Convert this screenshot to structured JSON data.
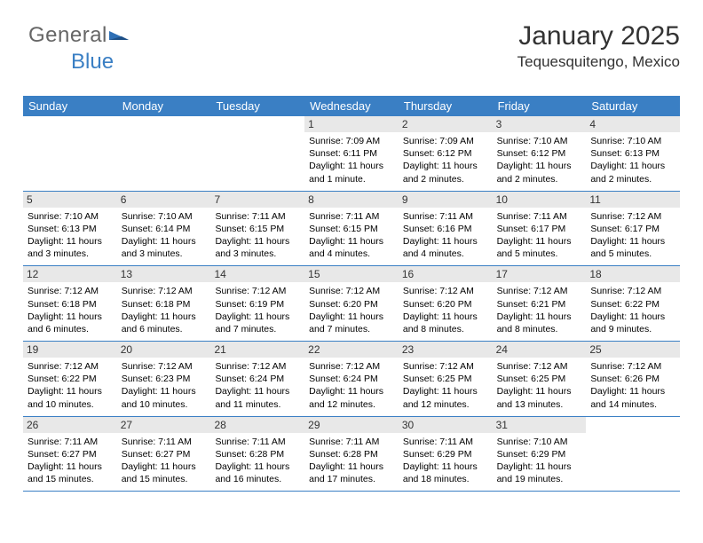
{
  "logo": {
    "text1": "General",
    "text2": "Blue",
    "tri_color": "#2e6fb5"
  },
  "header": {
    "title": "January 2025",
    "location": "Tequesquitengo, Mexico"
  },
  "colors": {
    "header_bg": "#3a7fc4",
    "header_text": "#ffffff",
    "daynum_bg": "#e8e8e8",
    "week_border": "#3a7fc4",
    "page_bg": "#ffffff"
  },
  "day_headers": [
    "Sunday",
    "Monday",
    "Tuesday",
    "Wednesday",
    "Thursday",
    "Friday",
    "Saturday"
  ],
  "weeks": [
    [
      {
        "n": "",
        "sunrise": "",
        "sunset": "",
        "daylight": ""
      },
      {
        "n": "",
        "sunrise": "",
        "sunset": "",
        "daylight": ""
      },
      {
        "n": "",
        "sunrise": "",
        "sunset": "",
        "daylight": ""
      },
      {
        "n": "1",
        "sunrise": "Sunrise: 7:09 AM",
        "sunset": "Sunset: 6:11 PM",
        "daylight": "Daylight: 11 hours and 1 minute."
      },
      {
        "n": "2",
        "sunrise": "Sunrise: 7:09 AM",
        "sunset": "Sunset: 6:12 PM",
        "daylight": "Daylight: 11 hours and 2 minutes."
      },
      {
        "n": "3",
        "sunrise": "Sunrise: 7:10 AM",
        "sunset": "Sunset: 6:12 PM",
        "daylight": "Daylight: 11 hours and 2 minutes."
      },
      {
        "n": "4",
        "sunrise": "Sunrise: 7:10 AM",
        "sunset": "Sunset: 6:13 PM",
        "daylight": "Daylight: 11 hours and 2 minutes."
      }
    ],
    [
      {
        "n": "5",
        "sunrise": "Sunrise: 7:10 AM",
        "sunset": "Sunset: 6:13 PM",
        "daylight": "Daylight: 11 hours and 3 minutes."
      },
      {
        "n": "6",
        "sunrise": "Sunrise: 7:10 AM",
        "sunset": "Sunset: 6:14 PM",
        "daylight": "Daylight: 11 hours and 3 minutes."
      },
      {
        "n": "7",
        "sunrise": "Sunrise: 7:11 AM",
        "sunset": "Sunset: 6:15 PM",
        "daylight": "Daylight: 11 hours and 3 minutes."
      },
      {
        "n": "8",
        "sunrise": "Sunrise: 7:11 AM",
        "sunset": "Sunset: 6:15 PM",
        "daylight": "Daylight: 11 hours and 4 minutes."
      },
      {
        "n": "9",
        "sunrise": "Sunrise: 7:11 AM",
        "sunset": "Sunset: 6:16 PM",
        "daylight": "Daylight: 11 hours and 4 minutes."
      },
      {
        "n": "10",
        "sunrise": "Sunrise: 7:11 AM",
        "sunset": "Sunset: 6:17 PM",
        "daylight": "Daylight: 11 hours and 5 minutes."
      },
      {
        "n": "11",
        "sunrise": "Sunrise: 7:12 AM",
        "sunset": "Sunset: 6:17 PM",
        "daylight": "Daylight: 11 hours and 5 minutes."
      }
    ],
    [
      {
        "n": "12",
        "sunrise": "Sunrise: 7:12 AM",
        "sunset": "Sunset: 6:18 PM",
        "daylight": "Daylight: 11 hours and 6 minutes."
      },
      {
        "n": "13",
        "sunrise": "Sunrise: 7:12 AM",
        "sunset": "Sunset: 6:18 PM",
        "daylight": "Daylight: 11 hours and 6 minutes."
      },
      {
        "n": "14",
        "sunrise": "Sunrise: 7:12 AM",
        "sunset": "Sunset: 6:19 PM",
        "daylight": "Daylight: 11 hours and 7 minutes."
      },
      {
        "n": "15",
        "sunrise": "Sunrise: 7:12 AM",
        "sunset": "Sunset: 6:20 PM",
        "daylight": "Daylight: 11 hours and 7 minutes."
      },
      {
        "n": "16",
        "sunrise": "Sunrise: 7:12 AM",
        "sunset": "Sunset: 6:20 PM",
        "daylight": "Daylight: 11 hours and 8 minutes."
      },
      {
        "n": "17",
        "sunrise": "Sunrise: 7:12 AM",
        "sunset": "Sunset: 6:21 PM",
        "daylight": "Daylight: 11 hours and 8 minutes."
      },
      {
        "n": "18",
        "sunrise": "Sunrise: 7:12 AM",
        "sunset": "Sunset: 6:22 PM",
        "daylight": "Daylight: 11 hours and 9 minutes."
      }
    ],
    [
      {
        "n": "19",
        "sunrise": "Sunrise: 7:12 AM",
        "sunset": "Sunset: 6:22 PM",
        "daylight": "Daylight: 11 hours and 10 minutes."
      },
      {
        "n": "20",
        "sunrise": "Sunrise: 7:12 AM",
        "sunset": "Sunset: 6:23 PM",
        "daylight": "Daylight: 11 hours and 10 minutes."
      },
      {
        "n": "21",
        "sunrise": "Sunrise: 7:12 AM",
        "sunset": "Sunset: 6:24 PM",
        "daylight": "Daylight: 11 hours and 11 minutes."
      },
      {
        "n": "22",
        "sunrise": "Sunrise: 7:12 AM",
        "sunset": "Sunset: 6:24 PM",
        "daylight": "Daylight: 11 hours and 12 minutes."
      },
      {
        "n": "23",
        "sunrise": "Sunrise: 7:12 AM",
        "sunset": "Sunset: 6:25 PM",
        "daylight": "Daylight: 11 hours and 12 minutes."
      },
      {
        "n": "24",
        "sunrise": "Sunrise: 7:12 AM",
        "sunset": "Sunset: 6:25 PM",
        "daylight": "Daylight: 11 hours and 13 minutes."
      },
      {
        "n": "25",
        "sunrise": "Sunrise: 7:12 AM",
        "sunset": "Sunset: 6:26 PM",
        "daylight": "Daylight: 11 hours and 14 minutes."
      }
    ],
    [
      {
        "n": "26",
        "sunrise": "Sunrise: 7:11 AM",
        "sunset": "Sunset: 6:27 PM",
        "daylight": "Daylight: 11 hours and 15 minutes."
      },
      {
        "n": "27",
        "sunrise": "Sunrise: 7:11 AM",
        "sunset": "Sunset: 6:27 PM",
        "daylight": "Daylight: 11 hours and 15 minutes."
      },
      {
        "n": "28",
        "sunrise": "Sunrise: 7:11 AM",
        "sunset": "Sunset: 6:28 PM",
        "daylight": "Daylight: 11 hours and 16 minutes."
      },
      {
        "n": "29",
        "sunrise": "Sunrise: 7:11 AM",
        "sunset": "Sunset: 6:28 PM",
        "daylight": "Daylight: 11 hours and 17 minutes."
      },
      {
        "n": "30",
        "sunrise": "Sunrise: 7:11 AM",
        "sunset": "Sunset: 6:29 PM",
        "daylight": "Daylight: 11 hours and 18 minutes."
      },
      {
        "n": "31",
        "sunrise": "Sunrise: 7:10 AM",
        "sunset": "Sunset: 6:29 PM",
        "daylight": "Daylight: 11 hours and 19 minutes."
      },
      {
        "n": "",
        "sunrise": "",
        "sunset": "",
        "daylight": ""
      }
    ]
  ]
}
